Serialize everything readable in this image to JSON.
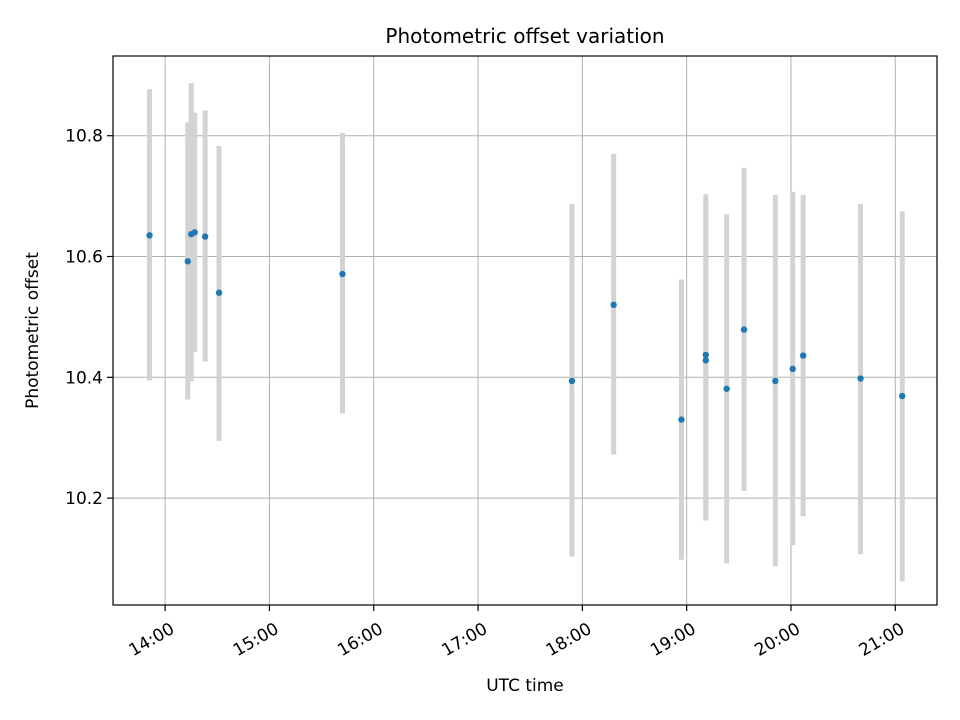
{
  "chart_data": {
    "type": "scatter",
    "title": "Photometric offset variation",
    "xlabel": "UTC time",
    "ylabel": "Photometric offset",
    "xlim": [
      "13:30",
      "21:24"
    ],
    "ylim": [
      10.023,
      10.932
    ],
    "grid": true,
    "x_ticks": [
      "14:00",
      "15:00",
      "16:00",
      "17:00",
      "18:00",
      "19:00",
      "20:00",
      "21:00"
    ],
    "y_ticks": [
      "10.2",
      "10.4",
      "10.6",
      "10.8"
    ],
    "y_tick_values": [
      10.2,
      10.4,
      10.6,
      10.8
    ],
    "colors": {
      "point": "#1f77b4",
      "errorbar": "#d3d3d3",
      "grid": "#b0b0b0"
    },
    "series": [
      {
        "points": [
          {
            "x": "13:51",
            "y": 10.635,
            "yerr_low": 10.395,
            "yerr_high": 10.877
          },
          {
            "x": "14:13",
            "y": 10.592,
            "yerr_low": 10.363,
            "yerr_high": 10.822
          },
          {
            "x": "14:15",
            "y": 10.637,
            "yerr_low": 10.393,
            "yerr_high": 10.887
          },
          {
            "x": "14:17",
            "y": 10.64,
            "yerr_low": 10.442,
            "yerr_high": 10.838
          },
          {
            "x": "14:23",
            "y": 10.633,
            "yerr_low": 10.426,
            "yerr_high": 10.842
          },
          {
            "x": "14:31",
            "y": 10.54,
            "yerr_low": 10.295,
            "yerr_high": 10.783
          },
          {
            "x": "15:42",
            "y": 10.571,
            "yerr_low": 10.34,
            "yerr_high": 10.805
          },
          {
            "x": "17:54",
            "y": 10.394,
            "yerr_low": 10.103,
            "yerr_high": 10.687
          },
          {
            "x": "18:18",
            "y": 10.52,
            "yerr_low": 10.272,
            "yerr_high": 10.77
          },
          {
            "x": "18:57",
            "y": 10.33,
            "yerr_low": 10.098,
            "yerr_high": 10.562
          },
          {
            "x": "19:11",
            "y": 10.437,
            "yerr_low": 10.163,
            "yerr_high": 10.703
          },
          {
            "x": "19:11",
            "y": 10.428,
            "yerr_low": 10.163,
            "yerr_high": 10.695
          },
          {
            "x": "19:23",
            "y": 10.381,
            "yerr_low": 10.092,
            "yerr_high": 10.67
          },
          {
            "x": "19:33",
            "y": 10.479,
            "yerr_low": 10.212,
            "yerr_high": 10.747
          },
          {
            "x": "19:51",
            "y": 10.394,
            "yerr_low": 10.087,
            "yerr_high": 10.702
          },
          {
            "x": "20:01",
            "y": 10.414,
            "yerr_low": 10.122,
            "yerr_high": 10.707
          },
          {
            "x": "20:07",
            "y": 10.436,
            "yerr_low": 10.17,
            "yerr_high": 10.702
          },
          {
            "x": "20:40",
            "y": 10.398,
            "yerr_low": 10.107,
            "yerr_high": 10.687
          },
          {
            "x": "21:04",
            "y": 10.369,
            "yerr_low": 10.062,
            "yerr_high": 10.675
          }
        ]
      }
    ]
  }
}
